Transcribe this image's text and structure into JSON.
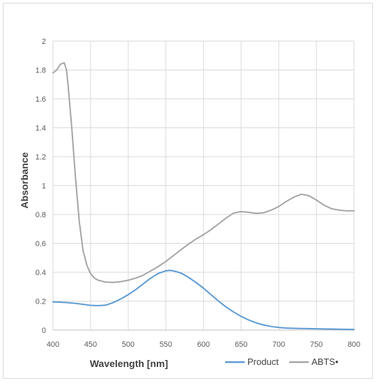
{
  "chart_data": {
    "type": "line",
    "title": "",
    "xlabel": "Wavelength [nm]",
    "ylabel": "Absorbance",
    "xlim": [
      400,
      800
    ],
    "ylim": [
      0,
      2
    ],
    "x_ticks": [
      400,
      450,
      500,
      550,
      600,
      650,
      700,
      750,
      800
    ],
    "y_ticks": [
      0,
      0.2,
      0.4,
      0.6,
      0.8,
      1,
      1.2,
      1.4,
      1.6,
      1.8,
      2
    ],
    "grid": true,
    "legend": "bottom-right",
    "series": [
      {
        "name": "Product",
        "color": "#5b9bd5",
        "x": [
          400,
          410,
          420,
          430,
          440,
          450,
          460,
          470,
          480,
          490,
          500,
          510,
          520,
          530,
          540,
          550,
          555,
          560,
          570,
          580,
          590,
          600,
          610,
          620,
          630,
          640,
          650,
          660,
          670,
          680,
          690,
          700,
          710,
          720,
          730,
          740,
          750,
          760,
          770,
          780,
          790,
          800
        ],
        "y": [
          0.195,
          0.193,
          0.19,
          0.185,
          0.178,
          0.171,
          0.169,
          0.172,
          0.19,
          0.215,
          0.245,
          0.28,
          0.32,
          0.36,
          0.392,
          0.41,
          0.413,
          0.41,
          0.395,
          0.365,
          0.33,
          0.29,
          0.245,
          0.2,
          0.16,
          0.125,
          0.095,
          0.07,
          0.05,
          0.035,
          0.025,
          0.018,
          0.014,
          0.012,
          0.011,
          0.01,
          0.009,
          0.008,
          0.007,
          0.006,
          0.005,
          0.004
        ]
      },
      {
        "name": "ABTS•",
        "color": "#a5a5a5",
        "x": [
          400,
          405,
          410,
          415,
          418,
          420,
          425,
          430,
          435,
          440,
          445,
          450,
          455,
          460,
          470,
          480,
          490,
          500,
          510,
          520,
          530,
          540,
          550,
          560,
          570,
          580,
          590,
          600,
          610,
          620,
          630,
          640,
          650,
          660,
          670,
          680,
          690,
          700,
          710,
          720,
          730,
          740,
          750,
          760,
          770,
          780,
          790,
          800
        ],
        "y": [
          1.78,
          1.8,
          1.84,
          1.85,
          1.8,
          1.7,
          1.4,
          1.05,
          0.75,
          0.55,
          0.45,
          0.39,
          0.36,
          0.345,
          0.332,
          0.33,
          0.335,
          0.345,
          0.36,
          0.38,
          0.41,
          0.44,
          0.475,
          0.515,
          0.555,
          0.595,
          0.63,
          0.66,
          0.695,
          0.735,
          0.775,
          0.81,
          0.82,
          0.815,
          0.808,
          0.812,
          0.83,
          0.855,
          0.89,
          0.92,
          0.94,
          0.93,
          0.9,
          0.865,
          0.84,
          0.83,
          0.825,
          0.825
        ]
      }
    ]
  }
}
